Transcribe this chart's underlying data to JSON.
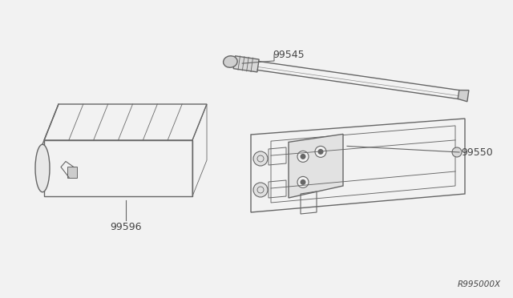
{
  "bg_color": "#f2f2f2",
  "line_color": "#666666",
  "line_color_dark": "#444444",
  "text_color": "#444444",
  "ref_number": "R995000X",
  "part_99596_label": "99596",
  "part_99545_label": "99545",
  "part_99550_label": "99550"
}
